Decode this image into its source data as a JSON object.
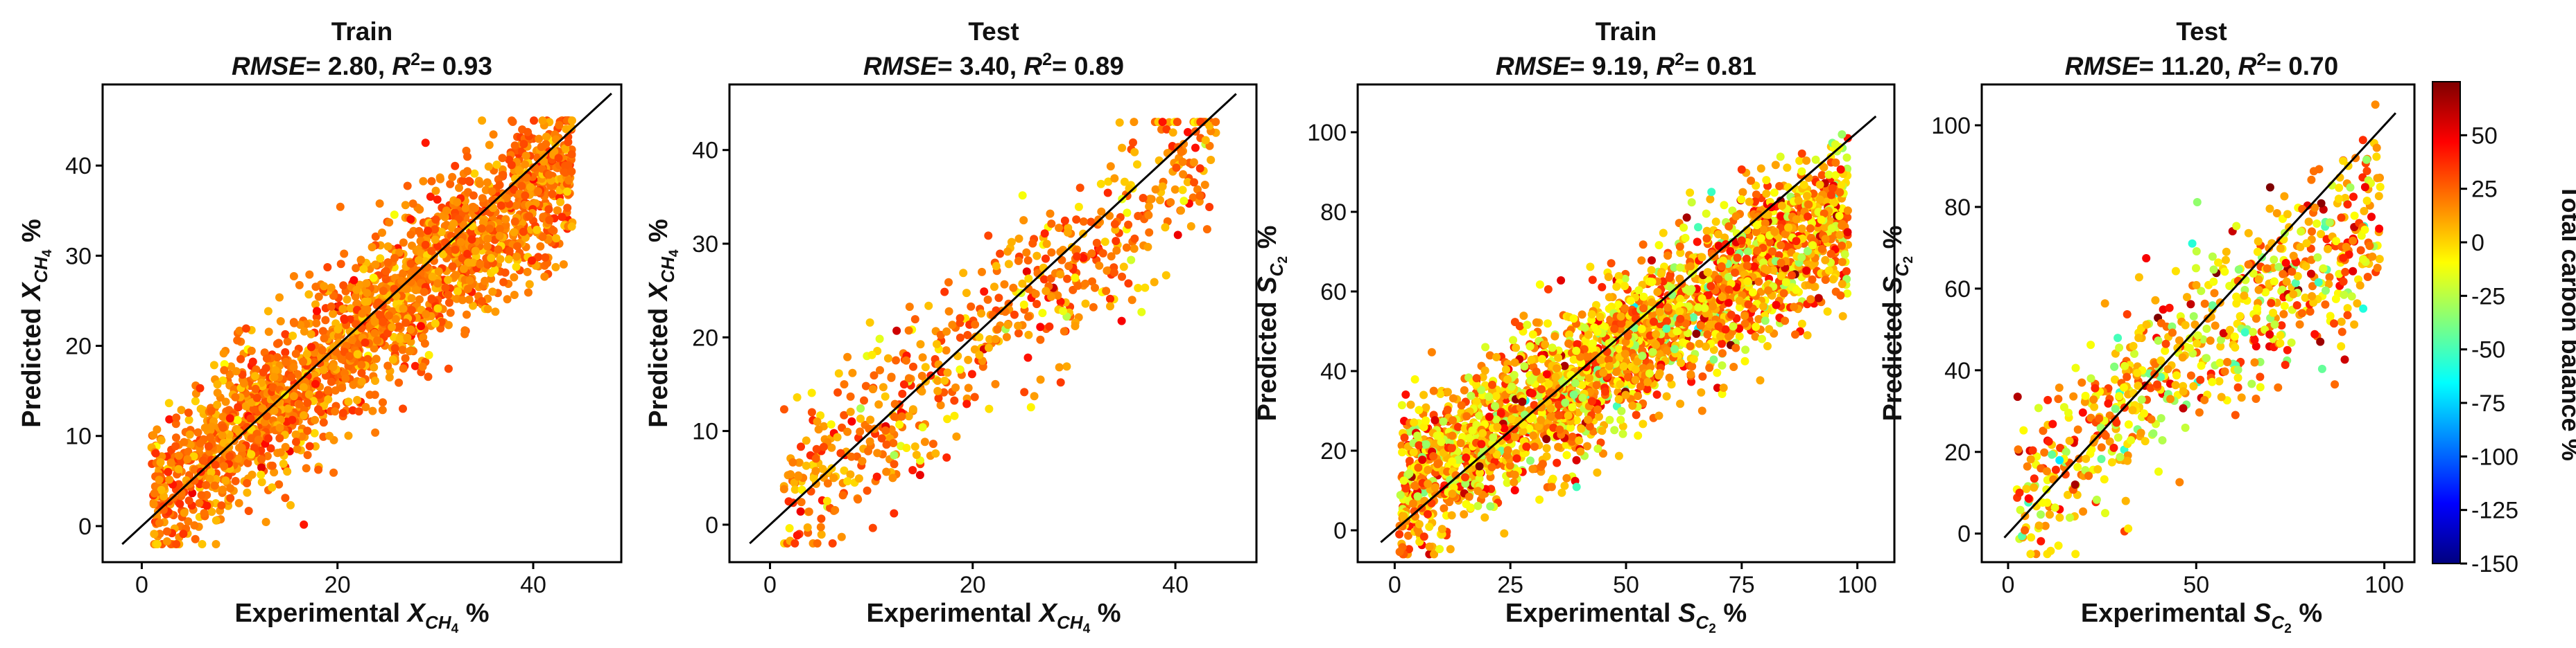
{
  "colors": {
    "jet": [
      "#00007f",
      "#0000ff",
      "#007fff",
      "#00ffff",
      "#7fff7f",
      "#ffff00",
      "#ff7f00",
      "#ff0000",
      "#7f0000"
    ],
    "frame": "#000000",
    "identity_line": "#000000"
  },
  "colorbar": {
    "label": "Total carbon balance %",
    "min": -150,
    "max": 75,
    "ticks": [
      -150,
      -125,
      -100,
      -75,
      -50,
      -25,
      0,
      25,
      50
    ],
    "tick_labels": [
      "-150",
      "-125",
      "-100",
      "-75",
      "-50",
      "-25",
      "0",
      "25",
      "50"
    ]
  },
  "chart_data": [
    {
      "type": "scatter",
      "title_split": "Train",
      "metric_rmse_label": "RMSE",
      "metric_rmse_value": "= 2.80, ",
      "metric_r_label": "R",
      "metric_r_sup": "2",
      "metric_r_value": "= 0.93",
      "xlabel_prefix": "Experimental ",
      "xlabel_var": "X",
      "xlabel_sub": "CH",
      "xlabel_sub2": "4",
      "xlabel_suffix": " %",
      "ylabel_prefix": "Predicted ",
      "ylabel_var": "X",
      "ylabel_sub": "CH",
      "ylabel_sub2": "4",
      "ylabel_suffix": " %",
      "xlim": [
        -4,
        49
      ],
      "ylim": [
        -4,
        49
      ],
      "xticks": [
        0,
        20,
        40
      ],
      "yticks": [
        0,
        10,
        20,
        30,
        40
      ],
      "identity_line": [
        [
          -2,
          -2
        ],
        [
          48,
          48
        ]
      ],
      "scatter": {
        "n_points": 2200,
        "x_min": 1,
        "x_max": 44,
        "noise": 4.2,
        "pred_slope": 0.88,
        "pred_intercept": 1.8,
        "color_mean": 20,
        "color_sd": 10
      }
    },
    {
      "type": "scatter",
      "title_split": "Test",
      "metric_rmse_label": "RMSE",
      "metric_rmse_value": "= 3.40, ",
      "metric_r_label": "R",
      "metric_r_sup": "2",
      "metric_r_value": "= 0.89",
      "xlabel_prefix": "Experimental ",
      "xlabel_var": "X",
      "xlabel_sub": "CH",
      "xlabel_sub2": "4",
      "xlabel_suffix": " %",
      "ylabel_prefix": "Predicted ",
      "ylabel_var": "X",
      "ylabel_sub": "CH",
      "ylabel_sub2": "4",
      "ylabel_suffix": " %",
      "xlim": [
        -4,
        48
      ],
      "ylim": [
        -4,
        47
      ],
      "xticks": [
        0,
        20,
        40
      ],
      "yticks": [
        0,
        10,
        20,
        30,
        40
      ],
      "identity_line": [
        [
          -2,
          -2
        ],
        [
          46,
          46
        ]
      ],
      "scatter": {
        "n_points": 620,
        "x_min": 1,
        "x_max": 44,
        "noise": 4.5,
        "pred_slope": 0.88,
        "pred_intercept": 1.5,
        "color_mean": 18,
        "color_sd": 14
      }
    },
    {
      "type": "scatter",
      "title_split": "Train",
      "metric_rmse_label": "RMSE",
      "metric_rmse_value": "= 9.19, ",
      "metric_r_label": "R",
      "metric_r_sup": "2",
      "metric_r_value": "= 0.81",
      "xlabel_prefix": "Experimental ",
      "xlabel_var": "S",
      "xlabel_sub": "C",
      "xlabel_sub2": "2",
      "xlabel_suffix": " %",
      "ylabel_prefix": "Predicted ",
      "ylabel_var": "S",
      "ylabel_sub": "C",
      "ylabel_sub2": "2",
      "ylabel_suffix": " %",
      "xlim": [
        -8,
        108
      ],
      "ylim": [
        -8,
        112
      ],
      "xticks": [
        0,
        25,
        50,
        75,
        100
      ],
      "yticks": [
        0,
        20,
        40,
        60,
        80,
        100
      ],
      "identity_line": [
        [
          -3,
          -3
        ],
        [
          104,
          104
        ]
      ],
      "scatter": {
        "n_points": 2600,
        "x_min": 1,
        "x_max": 98,
        "noise": 9.5,
        "pred_slope": 0.72,
        "pred_intercept": 10,
        "color_mean": 10,
        "color_sd": 22
      }
    },
    {
      "type": "scatter",
      "title_split": "Test",
      "metric_rmse_label": "RMSE",
      "metric_rmse_value": "= 11.20, ",
      "metric_r_label": "R",
      "metric_r_sup": "2",
      "metric_r_value": "= 0.70",
      "xlabel_prefix": "Experimental ",
      "xlabel_var": "S",
      "xlabel_sub": "C",
      "xlabel_sub2": "2",
      "xlabel_suffix": " %",
      "ylabel_prefix": "Predicted ",
      "ylabel_var": "S",
      "ylabel_sub": "C",
      "ylabel_sub2": "2",
      "ylabel_suffix": " %",
      "xlim": [
        -7,
        108
      ],
      "ylim": [
        -7,
        110
      ],
      "xticks": [
        0,
        50,
        100
      ],
      "yticks": [
        0,
        20,
        40,
        60,
        80,
        100
      ],
      "identity_line": [
        [
          -1,
          -1
        ],
        [
          103,
          103
        ]
      ],
      "scatter": {
        "n_points": 700,
        "x_min": 2,
        "x_max": 99,
        "noise": 11,
        "pred_slope": 0.7,
        "pred_intercept": 10,
        "color_mean": 8,
        "color_sd": 26
      }
    }
  ]
}
